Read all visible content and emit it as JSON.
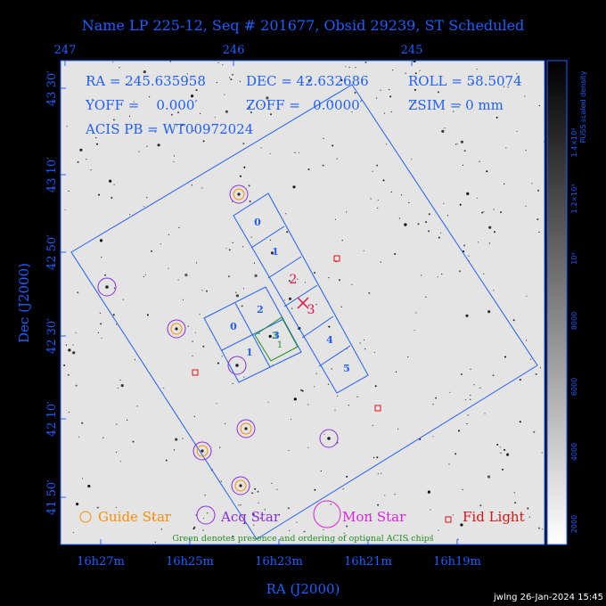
{
  "header": {
    "title": "Name LP 225-12, Seq # 201677, Obsid 29239, ST Scheduled",
    "top_ticks": [
      "247",
      "246",
      "245"
    ]
  },
  "info": {
    "ra": "RA = 245.635958",
    "dec": "DEC = 42.632686",
    "roll": "ROLL = 58.5074",
    "yoff": "YOFF =    0.000′",
    "zoff": "ZOFF =   0.0000′",
    "zsim": "ZSIM = 0 mm",
    "acis_pb": "ACIS PB = WT00972024"
  },
  "axes": {
    "xlabel": "RA (J2000)",
    "ylabel": "Dec (J2000)",
    "x_ticks": [
      "16h27m",
      "16h25m",
      "16h23m",
      "16h21m",
      "16h19m"
    ],
    "y_ticks": [
      "43 30′",
      "43 10′",
      "42 50′",
      "42 30′",
      "42 10′",
      "41 50′"
    ]
  },
  "colorbar": {
    "label": "PUSS scaled density",
    "ticks": [
      "1.4×10⁴",
      "1.2×10⁴",
      "10⁴",
      "8000",
      "6000",
      "4000",
      "2000"
    ]
  },
  "ccd_labels": {
    "s_array": [
      "0",
      "1",
      "2",
      "3",
      "4",
      "5"
    ],
    "i_array": [
      "0",
      "2",
      "1",
      "3"
    ],
    "optional_1": "1",
    "optional_3": "3"
  },
  "legend": {
    "guide": "Guide Star",
    "acq": "Acq Star",
    "mon": "Mon Star",
    "fid": "Fid Light",
    "note": "Green denotes presence and ordering of optional ACIS chips"
  },
  "footer": {
    "stamp": "jwlng 26-Jan-2024 15:45"
  },
  "colors": {
    "frame": "#1f5fff",
    "guide": "#ff8c00",
    "acq": "#8a2be2",
    "mon": "#e020e0",
    "fid": "#e01010",
    "optional": "#209020",
    "target": "#e0104a"
  }
}
